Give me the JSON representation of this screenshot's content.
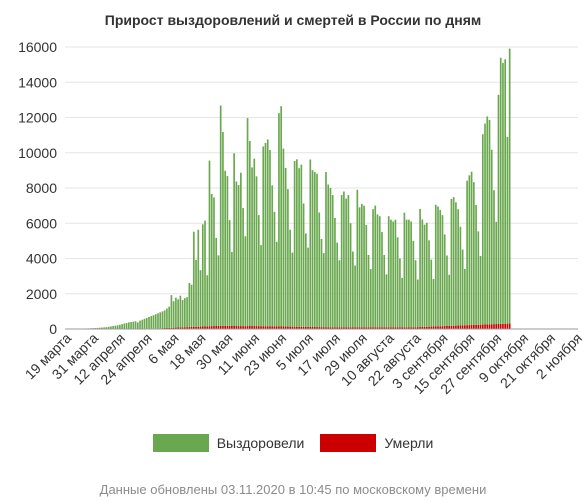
{
  "chart_data": {
    "type": "bar",
    "title": "Прирост выздоровлений и смертей в России по дням",
    "xlabel": "",
    "ylabel": "",
    "ylim": [
      0,
      16000
    ],
    "yticks": [
      0,
      2000,
      4000,
      6000,
      8000,
      10000,
      12000,
      14000,
      16000
    ],
    "x_start_date": "2020-03-19",
    "x_end_date": "2020-11-02",
    "x_tick_labels": [
      "19 марта",
      "31 марта",
      "12 апреля",
      "24 апреля",
      "6 мая",
      "18 мая",
      "30 мая",
      "11 июня",
      "23 июня",
      "5 июля",
      "17 июля",
      "29 июля",
      "10 августа",
      "22 августа",
      "3 сентября",
      "15 сентября",
      "27 сентября",
      "9 октября",
      "21 октября",
      "2 ноября"
    ],
    "stacked": true,
    "series": [
      {
        "name": "Выздоровели",
        "color": "#6aa84f",
        "values": [
          5,
          6,
          8,
          10,
          12,
          15,
          18,
          20,
          25,
          30,
          35,
          40,
          45,
          50,
          60,
          70,
          80,
          90,
          100,
          120,
          140,
          160,
          180,
          200,
          230,
          260,
          300,
          330,
          360,
          380,
          400,
          420,
          350,
          450,
          500,
          550,
          600,
          650,
          700,
          750,
          800,
          850,
          900,
          950,
          1000,
          1100,
          1200,
          1850,
          1500,
          1700,
          1600,
          1800,
          1550,
          1650,
          1700,
          2500,
          2400,
          5400,
          3800,
          5500,
          3200,
          5800,
          6000,
          2900,
          9400,
          7500,
          7300,
          5000,
          4000,
          12500,
          11000,
          8800,
          8500,
          6000,
          4200,
          9800,
          8200,
          8000,
          8700,
          6700,
          5100,
          11800,
          10500,
          9000,
          9500,
          8500,
          6300,
          4600,
          10200,
          10400,
          10600,
          10000,
          8000,
          6500,
          4800,
          12100,
          12500,
          10100,
          9000,
          7800,
          5500,
          4200,
          9400,
          9500,
          9000,
          9200,
          7000,
          5300,
          4500,
          9500,
          8900,
          8800,
          8700,
          6500,
          5000,
          4200,
          8800,
          8100,
          7900,
          7500,
          6200,
          4800,
          3800,
          7500,
          7700,
          7300,
          7500,
          5900,
          4300,
          3500,
          7800,
          6800,
          7000,
          6900,
          5800,
          4100,
          3300,
          6700,
          6900,
          6400,
          6300,
          5400,
          4100,
          3000,
          6300,
          6100,
          6000,
          6100,
          5100,
          3900,
          2800,
          6500,
          6100,
          6100,
          6000,
          4900,
          3800,
          2700,
          6700,
          6100,
          5800,
          5900,
          4900,
          3800,
          2700,
          6900,
          6800,
          6600,
          6300,
          5200,
          4000,
          2900,
          7200,
          7300,
          7000,
          6600,
          5600,
          4300,
          3200,
          8200,
          8500,
          8700,
          8100,
          6800,
          5300,
          3900,
          10800,
          11400,
          11800,
          11600,
          9900,
          7600,
          5800,
          13000,
          15100,
          14800,
          15000,
          10600,
          15600
        ]
      },
      {
        "name": "Умерли",
        "color": "#cc0000",
        "values": [
          0,
          0,
          0,
          0,
          0,
          0,
          0,
          0,
          1,
          1,
          1,
          2,
          2,
          2,
          3,
          3,
          4,
          4,
          5,
          6,
          7,
          8,
          9,
          10,
          11,
          12,
          13,
          14,
          15,
          16,
          18,
          20,
          22,
          24,
          26,
          28,
          30,
          32,
          34,
          36,
          38,
          40,
          45,
          50,
          55,
          60,
          65,
          70,
          75,
          80,
          85,
          90,
          95,
          100,
          105,
          110,
          115,
          120,
          125,
          130,
          135,
          140,
          145,
          150,
          155,
          160,
          165,
          170,
          175,
          180,
          180,
          178,
          176,
          174,
          172,
          170,
          168,
          166,
          164,
          162,
          160,
          165,
          170,
          168,
          166,
          164,
          162,
          160,
          158,
          156,
          154,
          152,
          150,
          148,
          146,
          144,
          142,
          140,
          138,
          136,
          134,
          132,
          130,
          128,
          126,
          124,
          122,
          120,
          118,
          116,
          114,
          112,
          110,
          108,
          106,
          104,
          102,
          100,
          100,
          100,
          100,
          100,
          100,
          100,
          100,
          100,
          100,
          100,
          100,
          100,
          100,
          100,
          100,
          100,
          100,
          100,
          100,
          100,
          100,
          100,
          100,
          100,
          100,
          100,
          100,
          100,
          100,
          100,
          100,
          100,
          100,
          100,
          100,
          100,
          100,
          100,
          100,
          105,
          110,
          115,
          120,
          125,
          130,
          135,
          140,
          145,
          150,
          155,
          160,
          165,
          170,
          175,
          180,
          185,
          190,
          195,
          200,
          205,
          210,
          215,
          220,
          225,
          230,
          235,
          240,
          245,
          250,
          255,
          260,
          265,
          270,
          275,
          280,
          285,
          290,
          295,
          300,
          305,
          310,
          315,
          320,
          325,
          330,
          335,
          340
        ]
      }
    ],
    "grid": true,
    "legend": "bottom"
  },
  "footer": {
    "note": "Данные обновлены 03.11.2020 в 10:45 по московскому времени"
  }
}
